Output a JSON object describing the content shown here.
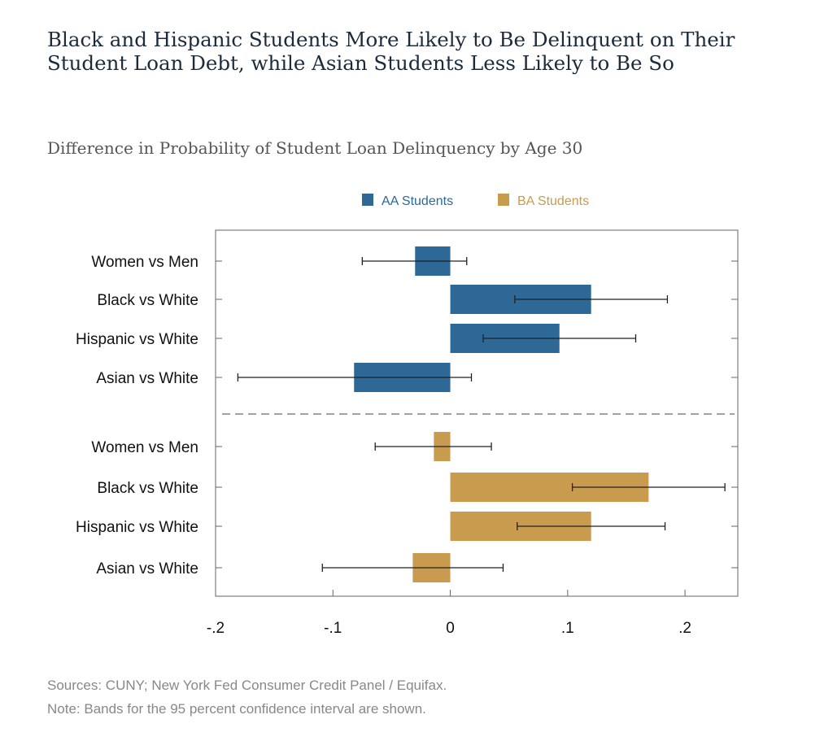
{
  "title": "Black and Hispanic Students More Likely to Be Delinquent on Their Student Loan Debt, while Asian Students Less Likely to Be So",
  "subtitle": "Difference in Probability of Student Loan Delinquency by Age 30",
  "sources": "Sources: CUNY; New York Fed Consumer Credit Panel / Equifax.",
  "note": "Note: Bands for the 95 percent confidence interval are shown.",
  "chart_data": {
    "type": "bar",
    "orientation": "horizontal",
    "categories": [
      "Women vs Men",
      "Black vs White",
      "Hispanic vs White",
      "Asian vs White"
    ],
    "series": [
      {
        "name": "AA Students",
        "color": "#2e6896",
        "values": [
          -0.03,
          0.12,
          0.093,
          -0.082
        ],
        "ci_low": [
          -0.075,
          0.055,
          0.028,
          -0.181
        ],
        "ci_high": [
          0.014,
          0.185,
          0.158,
          0.018
        ]
      },
      {
        "name": "BA Students",
        "color": "#c89b4f",
        "values": [
          -0.014,
          0.169,
          0.12,
          -0.032
        ],
        "ci_low": [
          -0.064,
          0.104,
          0.057,
          -0.109
        ],
        "ci_high": [
          0.035,
          0.234,
          0.183,
          0.045
        ]
      }
    ],
    "xticks": [
      -0.2,
      -0.1,
      0,
      0.1,
      0.2
    ],
    "xtick_labels": [
      "-.2",
      "-.1",
      "0",
      ".1",
      ".2"
    ],
    "xlim": [
      -0.2,
      0.245
    ],
    "grid": false,
    "legend_position": "top"
  }
}
